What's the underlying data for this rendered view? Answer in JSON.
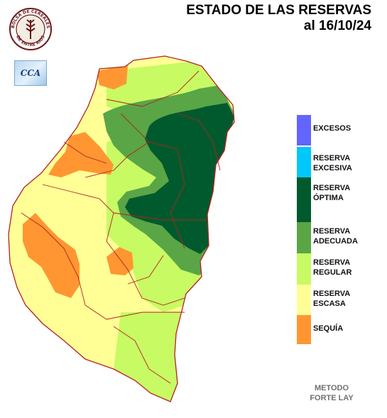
{
  "header": {
    "title_line1": "ESTADO DE LAS RESERVAS",
    "title_line2": "al 16/10/24"
  },
  "logos": {
    "seal_text_top": "BOLSA DE CEREALES",
    "seal_text_bottom": "DE ENTRE RIOS",
    "badge_text": "CCA"
  },
  "legend": [
    {
      "label_line1": "EXCESOS",
      "label_line2": "",
      "color": "#6464ff"
    },
    {
      "label_line1": "RESERVA",
      "label_line2": "EXCESIVA",
      "color": "#00c8fa"
    },
    {
      "label_line1": "RESERVA",
      "label_line2": "ÓPTIMA",
      "color": "#005a2d"
    },
    {
      "label_line1": "RESERVA",
      "label_line2": "ADECUADA",
      "color": "#5aa546"
    },
    {
      "label_line1": "RESERVA",
      "label_line2": "REGULAR",
      "color": "#c8fa64"
    },
    {
      "label_line1": "RESERVA",
      "label_line2": "ESCASA",
      "color": "#ffff96"
    },
    {
      "label_line1": "SEQUÍA",
      "label_line2": "",
      "color": "#ff9632"
    }
  ],
  "method": {
    "line1": "METODO",
    "line2": "FORTE LAY"
  },
  "map_colors": {
    "border": "#b22222",
    "optima": "#005a2d",
    "adecuada": "#5aa546",
    "regular": "#c8fa64",
    "escasa": "#ffff96",
    "sequia": "#ff9632"
  }
}
